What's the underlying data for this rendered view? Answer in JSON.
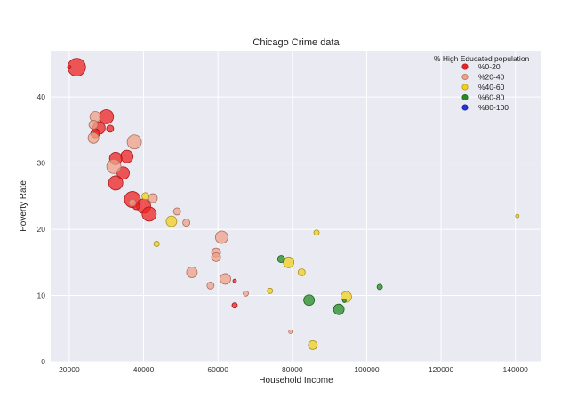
{
  "chart_data": {
    "type": "scatter",
    "title": "Chicago Crime data",
    "xlabel": "Household Income",
    "ylabel": "Poverty Rate",
    "xlim": [
      15000,
      147000
    ],
    "ylim": [
      0,
      47
    ],
    "xticks": [
      20000,
      40000,
      60000,
      80000,
      100000,
      120000,
      140000
    ],
    "yticks": [
      0,
      10,
      20,
      30,
      40
    ],
    "grid": true,
    "legend": {
      "title": "% High Educated population",
      "placement": "top-right",
      "entries": [
        {
          "label": "%0-20",
          "color": "#ee2222"
        },
        {
          "label": "%20-40",
          "color": "#f0a088"
        },
        {
          "label": "%40-60",
          "color": "#f0d020"
        },
        {
          "label": "%60-80",
          "color": "#228b22"
        },
        {
          "label": "%80-100",
          "color": "#2233dd"
        }
      ]
    },
    "series": [
      {
        "category": "%0-20",
        "color": "#ee2222",
        "points": [
          {
            "x": 22000,
            "y": 44.5,
            "s": 10
          },
          {
            "x": 20000,
            "y": 44.5,
            "s": 2
          },
          {
            "x": 30000,
            "y": 37.0,
            "s": 8
          },
          {
            "x": 28000,
            "y": 35.3,
            "s": 7
          },
          {
            "x": 31000,
            "y": 35.2,
            "s": 4
          },
          {
            "x": 27000,
            "y": 34.5,
            "s": 5
          },
          {
            "x": 35500,
            "y": 31.0,
            "s": 7
          },
          {
            "x": 32500,
            "y": 30.7,
            "s": 7
          },
          {
            "x": 34500,
            "y": 28.5,
            "s": 7
          },
          {
            "x": 32500,
            "y": 27.0,
            "s": 8
          },
          {
            "x": 37000,
            "y": 24.5,
            "s": 9
          },
          {
            "x": 40000,
            "y": 23.5,
            "s": 8
          },
          {
            "x": 41500,
            "y": 22.3,
            "s": 8
          },
          {
            "x": 38000,
            "y": 23.5,
            "s": 4
          },
          {
            "x": 64500,
            "y": 12.2,
            "s": 2
          },
          {
            "x": 64500,
            "y": 8.5,
            "s": 3
          }
        ]
      },
      {
        "category": "%20-40",
        "color": "#f0a088",
        "points": [
          {
            "x": 27000,
            "y": 37.0,
            "s": 6
          },
          {
            "x": 26500,
            "y": 35.8,
            "s": 5
          },
          {
            "x": 26500,
            "y": 33.8,
            "s": 6
          },
          {
            "x": 37500,
            "y": 33.2,
            "s": 8
          },
          {
            "x": 32000,
            "y": 29.5,
            "s": 8
          },
          {
            "x": 37000,
            "y": 24.0,
            "s": 4
          },
          {
            "x": 42500,
            "y": 24.7,
            "s": 5
          },
          {
            "x": 49000,
            "y": 22.7,
            "s": 4
          },
          {
            "x": 51500,
            "y": 21.0,
            "s": 4
          },
          {
            "x": 61000,
            "y": 18.8,
            "s": 7
          },
          {
            "x": 59500,
            "y": 16.5,
            "s": 5
          },
          {
            "x": 59500,
            "y": 15.8,
            "s": 5
          },
          {
            "x": 53000,
            "y": 13.5,
            "s": 6
          },
          {
            "x": 62000,
            "y": 12.5,
            "s": 6
          },
          {
            "x": 58000,
            "y": 11.5,
            "s": 4
          },
          {
            "x": 67500,
            "y": 10.3,
            "s": 3
          },
          {
            "x": 79500,
            "y": 4.5,
            "s": 2
          }
        ]
      },
      {
        "category": "%40-60",
        "color": "#f0d020",
        "points": [
          {
            "x": 40500,
            "y": 25.0,
            "s": 4
          },
          {
            "x": 47500,
            "y": 21.2,
            "s": 6
          },
          {
            "x": 43500,
            "y": 17.8,
            "s": 3
          },
          {
            "x": 86500,
            "y": 19.5,
            "s": 3
          },
          {
            "x": 79000,
            "y": 15.0,
            "s": 6
          },
          {
            "x": 82500,
            "y": 13.5,
            "s": 4
          },
          {
            "x": 94500,
            "y": 9.8,
            "s": 6
          },
          {
            "x": 74000,
            "y": 10.7,
            "s": 3
          },
          {
            "x": 85500,
            "y": 2.5,
            "s": 5
          },
          {
            "x": 140500,
            "y": 22.0,
            "s": 2
          }
        ]
      },
      {
        "category": "%60-80",
        "color": "#228b22",
        "points": [
          {
            "x": 77000,
            "y": 15.5,
            "s": 4
          },
          {
            "x": 84500,
            "y": 9.3,
            "s": 6
          },
          {
            "x": 92500,
            "y": 7.9,
            "s": 6
          },
          {
            "x": 94000,
            "y": 9.2,
            "s": 2
          },
          {
            "x": 103500,
            "y": 11.3,
            "s": 3
          }
        ]
      },
      {
        "category": "%80-100",
        "color": "#2233dd",
        "points": []
      }
    ]
  }
}
